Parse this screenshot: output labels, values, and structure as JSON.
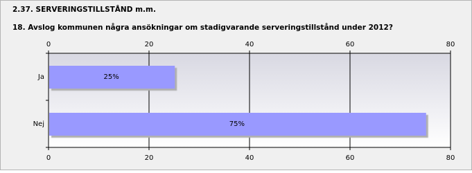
{
  "chart_data": {
    "type": "bar",
    "orientation": "horizontal",
    "section": "2.37. SERVERINGSTILLSTÅND m.m.",
    "title": "18. Avslog kommunen några ansökningar om stadigvarande serveringstillstånd under 2012?",
    "categories": [
      "Ja",
      "Nej"
    ],
    "values": [
      25,
      75
    ],
    "value_labels": [
      "25%",
      "75%"
    ],
    "color": "#9999ff",
    "xlim": [
      0,
      80
    ],
    "xticks": [
      0,
      20,
      40,
      60,
      80
    ],
    "grid": true
  }
}
